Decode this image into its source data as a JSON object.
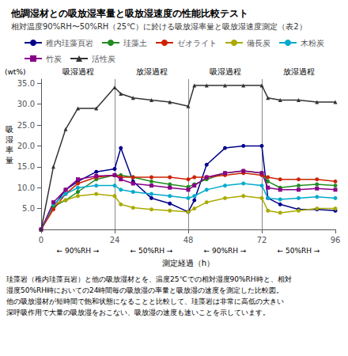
{
  "chart_data": {
    "type": "line",
    "title": "他調湿材との吸放湿率量と吸放湿速度の性能比較テスト",
    "subtitle": "相対温度90%RH〜50%RH（25℃）に於ける吸放湿率量と吸放湿速度測定（表2）",
    "ylabel_unit": "(wt%)",
    "ylabel": "吸\n湿\n率\n量",
    "xlabel": "測定経過（h）",
    "note": "珪藻岩（稚内珪藻頁岩）と他の吸放湿材とを、温度25℃での相対湿度90%RH時と、相対\n湿度50%RH時においての24時間毎の吸放湿の率量と吸放湿の速度を測定した比較図。\n他の吸放湿材が短時間で飽和状態になることと比較して、珪藻岩は非常に高低の大きい\n深呼吸作用で大量の吸放湿をおこない、吸放湿の速度も速いことを示しています。",
    "xlim": [
      0,
      96
    ],
    "ylim": [
      0,
      36
    ],
    "xticks": [
      0,
      24,
      48,
      72,
      96
    ],
    "yticks": [
      {
        "value": 5,
        "label": "5.0"
      },
      {
        "value": 10,
        "label": "10.0"
      },
      {
        "value": 15,
        "label": "15.0"
      },
      {
        "value": 20,
        "label": "20.0"
      },
      {
        "value": 25,
        "label": "25.0"
      },
      {
        "value": 30,
        "label": "30.0"
      },
      {
        "value": 35,
        "label": "35.0"
      }
    ],
    "grid": false,
    "legend": "top",
    "vlines": [
      24,
      48,
      72
    ],
    "phase_labels": [
      {
        "text": "吸湿過程",
        "x": 12
      },
      {
        "text": "放湿過程",
        "x": 36
      },
      {
        "text": "吸湿過程",
        "x": 60
      },
      {
        "text": "放湿過程",
        "x": 84
      }
    ],
    "rh_labels": [
      {
        "text": "← 90%RH →",
        "x": 12
      },
      {
        "text": "← 50%RH →",
        "x": 36
      },
      {
        "text": "← 90%RH →",
        "x": 60
      },
      {
        "text": "← 50%RH →",
        "x": 84
      }
    ],
    "x": [
      0,
      4,
      8,
      12,
      18,
      24,
      26,
      30,
      36,
      42,
      48,
      50,
      54,
      60,
      66,
      72,
      74,
      78,
      84,
      90,
      96
    ],
    "series": [
      {
        "name": "稚内珪藻頁岩",
        "color": "#00008B",
        "marker": "circle",
        "values": [
          0,
          5.5,
          9.5,
          11.5,
          13.8,
          14.5,
          19.5,
          11.5,
          7.5,
          6.2,
          4.2,
          7.0,
          15.5,
          19.5,
          20.0,
          20.0,
          7.5,
          6.0,
          4.8,
          4.8,
          4.5
        ]
      },
      {
        "name": "珪藻土",
        "color": "#228B22",
        "marker": "circle",
        "values": [
          0,
          5.5,
          7.0,
          9.0,
          12.0,
          13.0,
          13.0,
          12.5,
          11.5,
          10.8,
          10.2,
          10.8,
          12.0,
          13.5,
          14.0,
          13.5,
          11.5,
          10.0,
          10.5,
          10.8,
          10.5
        ]
      },
      {
        "name": "ゼオライト",
        "color": "#CC2200",
        "marker": "circle",
        "values": [
          0,
          4.8,
          8.5,
          11.0,
          12.5,
          13.0,
          12.5,
          12.5,
          12.5,
          12.5,
          12.0,
          12.5,
          12.5,
          13.0,
          13.5,
          13.0,
          12.5,
          12.0,
          12.0,
          12.0,
          11.5
        ]
      },
      {
        "name": "備長炭",
        "color": "#AAAA00",
        "marker": "circle",
        "values": [
          0,
          6.0,
          7.0,
          8.0,
          8.5,
          8.0,
          6.0,
          5.2,
          4.8,
          4.5,
          4.2,
          5.0,
          6.5,
          7.5,
          8.0,
          7.5,
          4.5,
          4.0,
          4.5,
          5.0,
          5.0
        ]
      },
      {
        "name": "木粉炭",
        "color": "#00AACC",
        "marker": "circle",
        "values": [
          0,
          6.0,
          8.5,
          10.0,
          10.5,
          10.5,
          9.5,
          9.0,
          8.5,
          8.0,
          7.5,
          8.0,
          9.5,
          10.5,
          11.0,
          10.5,
          7.5,
          7.2,
          7.5,
          7.8,
          7.5
        ]
      },
      {
        "name": "竹炭",
        "color": "#880088",
        "marker": "square",
        "values": [
          0,
          6.5,
          9.5,
          12.0,
          12.8,
          13.0,
          12.0,
          11.0,
          10.5,
          10.0,
          9.5,
          10.5,
          12.5,
          13.5,
          14.0,
          13.5,
          10.0,
          9.5,
          9.5,
          9.8,
          9.5
        ]
      },
      {
        "name": "活性炭",
        "color": "#333333",
        "marker": "triangle",
        "values": [
          0,
          15.0,
          24.0,
          29.0,
          29.0,
          34.0,
          32.5,
          31.5,
          31.0,
          30.5,
          29.5,
          34.5,
          34.5,
          34.5,
          34.5,
          34.5,
          31.5,
          31.0,
          31.0,
          30.5,
          30.5
        ]
      }
    ]
  }
}
